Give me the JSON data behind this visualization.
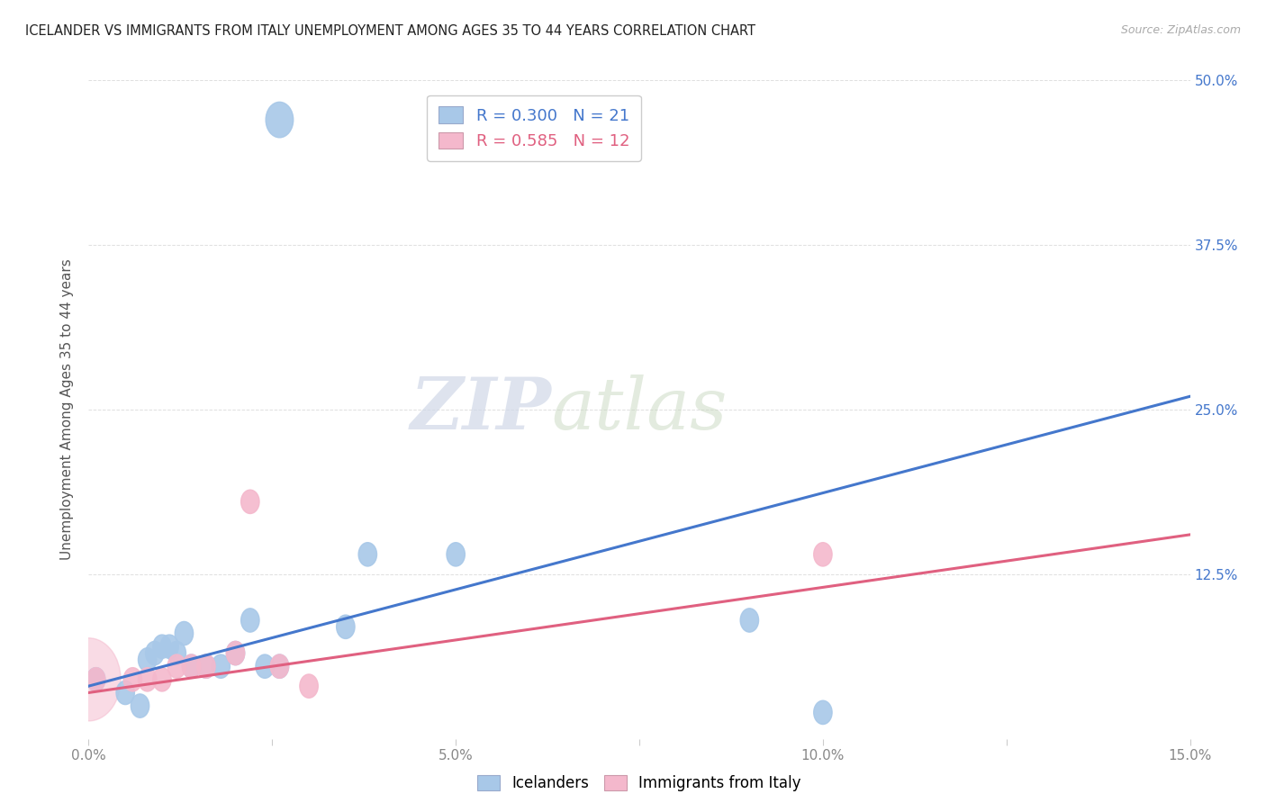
{
  "title": "ICELANDER VS IMMIGRANTS FROM ITALY UNEMPLOYMENT AMONG AGES 35 TO 44 YEARS CORRELATION CHART",
  "source": "Source: ZipAtlas.com",
  "ylabel": "Unemployment Among Ages 35 to 44 years",
  "xlim": [
    0.0,
    0.15
  ],
  "ylim": [
    0.0,
    0.5
  ],
  "icelander_color": "#a8c8e8",
  "immigrant_color": "#f4b8cc",
  "icelander_line_color": "#4477cc",
  "immigrant_line_color": "#e06080",
  "legend_R_icelander": "0.300",
  "legend_N_icelander": "21",
  "legend_R_immigrant": "0.585",
  "legend_N_immigrant": "12",
  "watermark_zip": "ZIP",
  "watermark_atlas": "atlas",
  "icelander_x": [
    0.001,
    0.005,
    0.007,
    0.008,
    0.009,
    0.01,
    0.011,
    0.012,
    0.013,
    0.014,
    0.016,
    0.018,
    0.02,
    0.022,
    0.024,
    0.026,
    0.035,
    0.038,
    0.05,
    0.09,
    0.1
  ],
  "icelander_y": [
    0.045,
    0.035,
    0.025,
    0.06,
    0.065,
    0.07,
    0.07,
    0.065,
    0.08,
    0.055,
    0.055,
    0.055,
    0.065,
    0.09,
    0.055,
    0.055,
    0.085,
    0.14,
    0.14,
    0.09,
    0.02
  ],
  "icelander_x_outlier": [
    0.026
  ],
  "icelander_y_outlier": [
    0.47
  ],
  "immigrant_x": [
    0.001,
    0.006,
    0.008,
    0.01,
    0.012,
    0.014,
    0.016,
    0.02,
    0.022,
    0.026,
    0.03,
    0.1
  ],
  "immigrant_y": [
    0.045,
    0.045,
    0.045,
    0.045,
    0.055,
    0.055,
    0.055,
    0.065,
    0.18,
    0.055,
    0.04,
    0.14
  ],
  "blue_line_x": [
    0.0,
    0.15
  ],
  "blue_line_y": [
    0.04,
    0.26
  ],
  "pink_line_x": [
    0.0,
    0.15
  ],
  "pink_line_y": [
    0.035,
    0.155
  ],
  "background_color": "#ffffff",
  "grid_color": "#e0e0e0"
}
